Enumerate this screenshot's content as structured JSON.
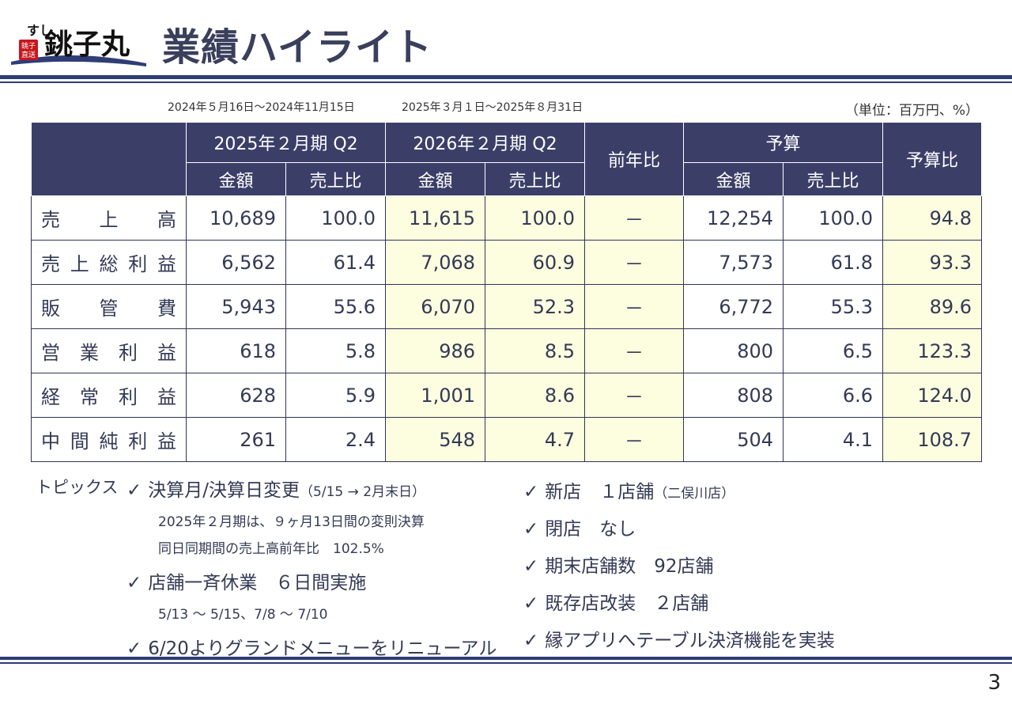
{
  "logo": {
    "kana": "すし",
    "name": "銚子丸",
    "stamp": "銚子直送"
  },
  "title": "業績ハイライト",
  "period_prev": "2024年５月16日～2024年11月15日",
  "period_curr": "2025年３月１日～2025年８月31日",
  "unit": "（単位：百万円、%）",
  "table": {
    "header_prev": "2025年２月期 Q2",
    "header_curr": "2026年２月期 Q2",
    "header_yoy": "前年比",
    "header_budget": "予算",
    "header_budget_ratio": "予算比",
    "sub_amount": "金額",
    "sub_ratio": "売上比",
    "rows": [
      {
        "label": "売上高",
        "p_amt": "10,689",
        "p_rat": "100.0",
        "c_amt": "11,615",
        "c_rat": "100.0",
        "yoy": "－",
        "b_amt": "12,254",
        "b_rat": "100.0",
        "b_ratio": "94.8"
      },
      {
        "label": "売上総利益",
        "p_amt": "6,562",
        "p_rat": "61.4",
        "c_amt": "7,068",
        "c_rat": "60.9",
        "yoy": "－",
        "b_amt": "7,573",
        "b_rat": "61.8",
        "b_ratio": "93.3"
      },
      {
        "label": "販管費",
        "p_amt": "5,943",
        "p_rat": "55.6",
        "c_amt": "6,070",
        "c_rat": "52.3",
        "yoy": "－",
        "b_amt": "6,772",
        "b_rat": "55.3",
        "b_ratio": "89.6"
      },
      {
        "label": "営業利益",
        "p_amt": "618",
        "p_rat": "5.8",
        "c_amt": "986",
        "c_rat": "8.5",
        "yoy": "－",
        "b_amt": "800",
        "b_rat": "6.5",
        "b_ratio": "123.3"
      },
      {
        "label": "経常利益",
        "p_amt": "628",
        "p_rat": "5.9",
        "c_amt": "1,001",
        "c_rat": "8.6",
        "yoy": "－",
        "b_amt": "808",
        "b_rat": "6.6",
        "b_ratio": "124.0"
      },
      {
        "label": "中間純利益",
        "p_amt": "261",
        "p_rat": "2.4",
        "c_amt": "548",
        "c_rat": "4.7",
        "yoy": "－",
        "b_amt": "504",
        "b_rat": "4.1",
        "b_ratio": "108.7"
      }
    ]
  },
  "topics": {
    "label": "トピックス",
    "check": "✓",
    "left": [
      {
        "text": "決算月/決算日変更",
        "note": "（5/15 → 2月末日）"
      },
      {
        "text": "店舗一斉休業　６日間実施"
      },
      {
        "text": "6/20よりグランドメニューをリニューアル"
      }
    ],
    "left_sub1": [
      "2025年２月期は、９ヶ月13日間の変則決算",
      "同日同期間の売上高前年比　102.5%"
    ],
    "left_sub2": [
      "5/13 ～ 5/15、7/8 ～ 7/10"
    ],
    "right": [
      {
        "text": "新店　１店舗",
        "note": "（二俣川店）"
      },
      {
        "text": "閉店　なし"
      },
      {
        "text": "期末店舗数　92店舗"
      },
      {
        "text": "既存店改装　２店舗"
      },
      {
        "text": "縁アプリへテーブル決済機能を実装"
      }
    ]
  },
  "page_number": "3"
}
